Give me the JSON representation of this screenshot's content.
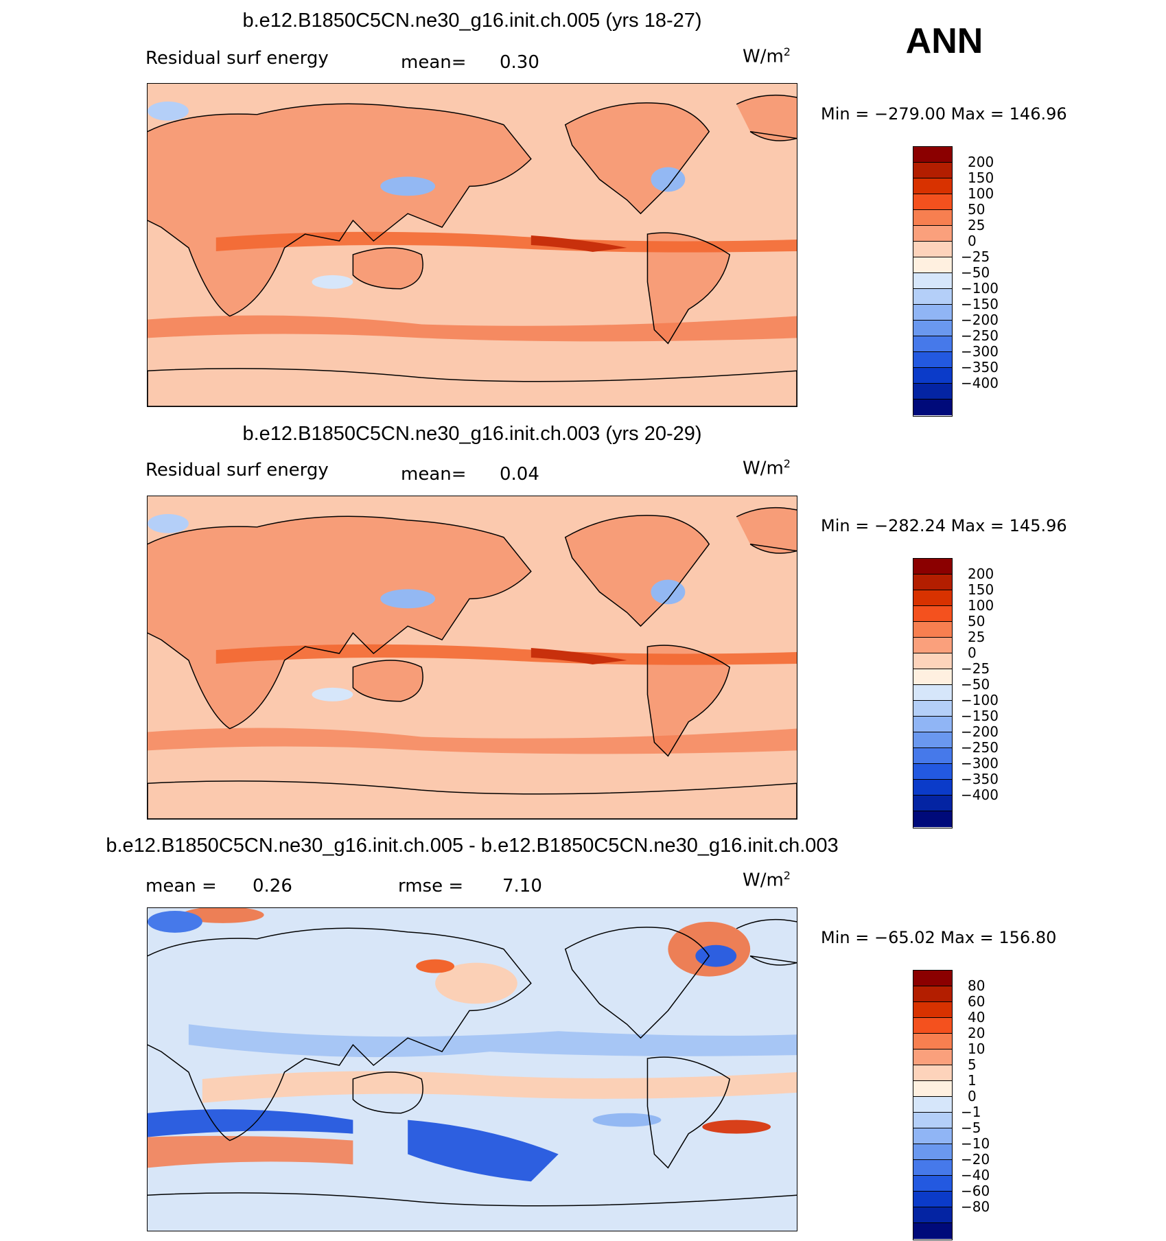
{
  "season": "ANN",
  "panels": [
    {
      "title": "b.e12.B1850C5CN.ne30_g16.init.ch.005 (yrs 18-27)",
      "left_label": "Residual surf energy",
      "stat1_label": "mean=",
      "stat1_value": "0.30",
      "stat2_label": "",
      "stat2_value": "",
      "units": "W/m",
      "units_sup": "2",
      "minmax": "Min = −279.00 Max = 146.96",
      "cbar_colors": [
        "#8b0000",
        "#b31e00",
        "#d83200",
        "#f4511e",
        "#f77f50",
        "#faa07c",
        "#fdd3bb",
        "#fff0e0",
        "#d6e6fa",
        "#b4cff8",
        "#90b5f5",
        "#6a98ef",
        "#4679ea",
        "#2359e0",
        "#0b3bc9",
        "#0424a3",
        "#000a7a"
      ],
      "cbar_labels": [
        "200",
        "150",
        "100",
        "50",
        "25",
        "0",
        "−25",
        "−50",
        "−100",
        "−150",
        "−200",
        "−250",
        "−300",
        "−350",
        "−400"
      ]
    },
    {
      "title": "b.e12.B1850C5CN.ne30_g16.init.ch.003 (yrs 20-29)",
      "left_label": "Residual surf energy",
      "stat1_label": "mean=",
      "stat1_value": "0.04",
      "stat2_label": "",
      "stat2_value": "",
      "units": "W/m",
      "units_sup": "2",
      "minmax": "Min = −282.24 Max = 145.96",
      "cbar_colors": [
        "#8b0000",
        "#b31e00",
        "#d83200",
        "#f4511e",
        "#f77f50",
        "#faa07c",
        "#fdd3bb",
        "#fff0e0",
        "#d6e6fa",
        "#b4cff8",
        "#90b5f5",
        "#6a98ef",
        "#4679ea",
        "#2359e0",
        "#0b3bc9",
        "#0424a3",
        "#000a7a"
      ],
      "cbar_labels": [
        "200",
        "150",
        "100",
        "50",
        "25",
        "0",
        "−25",
        "−50",
        "−100",
        "−150",
        "−200",
        "−250",
        "−300",
        "−350",
        "−400"
      ]
    },
    {
      "title": "b.e12.B1850C5CN.ne30_g16.init.ch.005 - b.e12.B1850C5CN.ne30_g16.init.ch.003",
      "left_label": "",
      "stat1_label": "mean =",
      "stat1_value": "0.26",
      "stat2_label": "rmse =",
      "stat2_value": "7.10",
      "units": "W/m",
      "units_sup": "2",
      "minmax": "Min = −65.02 Max = 156.80",
      "cbar_colors": [
        "#8b0000",
        "#b31e00",
        "#d83200",
        "#f4511e",
        "#f77f50",
        "#faa07c",
        "#fdd3bb",
        "#fff0e0",
        "#d6e6fa",
        "#b4cff8",
        "#90b5f5",
        "#6a98ef",
        "#4679ea",
        "#2359e0",
        "#0b3bc9",
        "#0424a3",
        "#000a7a"
      ],
      "cbar_labels": [
        "80",
        "60",
        "40",
        "20",
        "10",
        "5",
        "1",
        "0",
        "−1",
        "−5",
        "−10",
        "−20",
        "−40",
        "−60",
        "−80"
      ]
    }
  ],
  "colors": {
    "map_bg_abs": "#fbc9ae",
    "land_abs": "#f79d78",
    "map_bg_diff": "#d8e6f8",
    "warm_band": "#f2652d",
    "cool_patch": "#93b8f3",
    "deep_blue": "#2d5fe0",
    "deep_red": "#d8401a"
  }
}
